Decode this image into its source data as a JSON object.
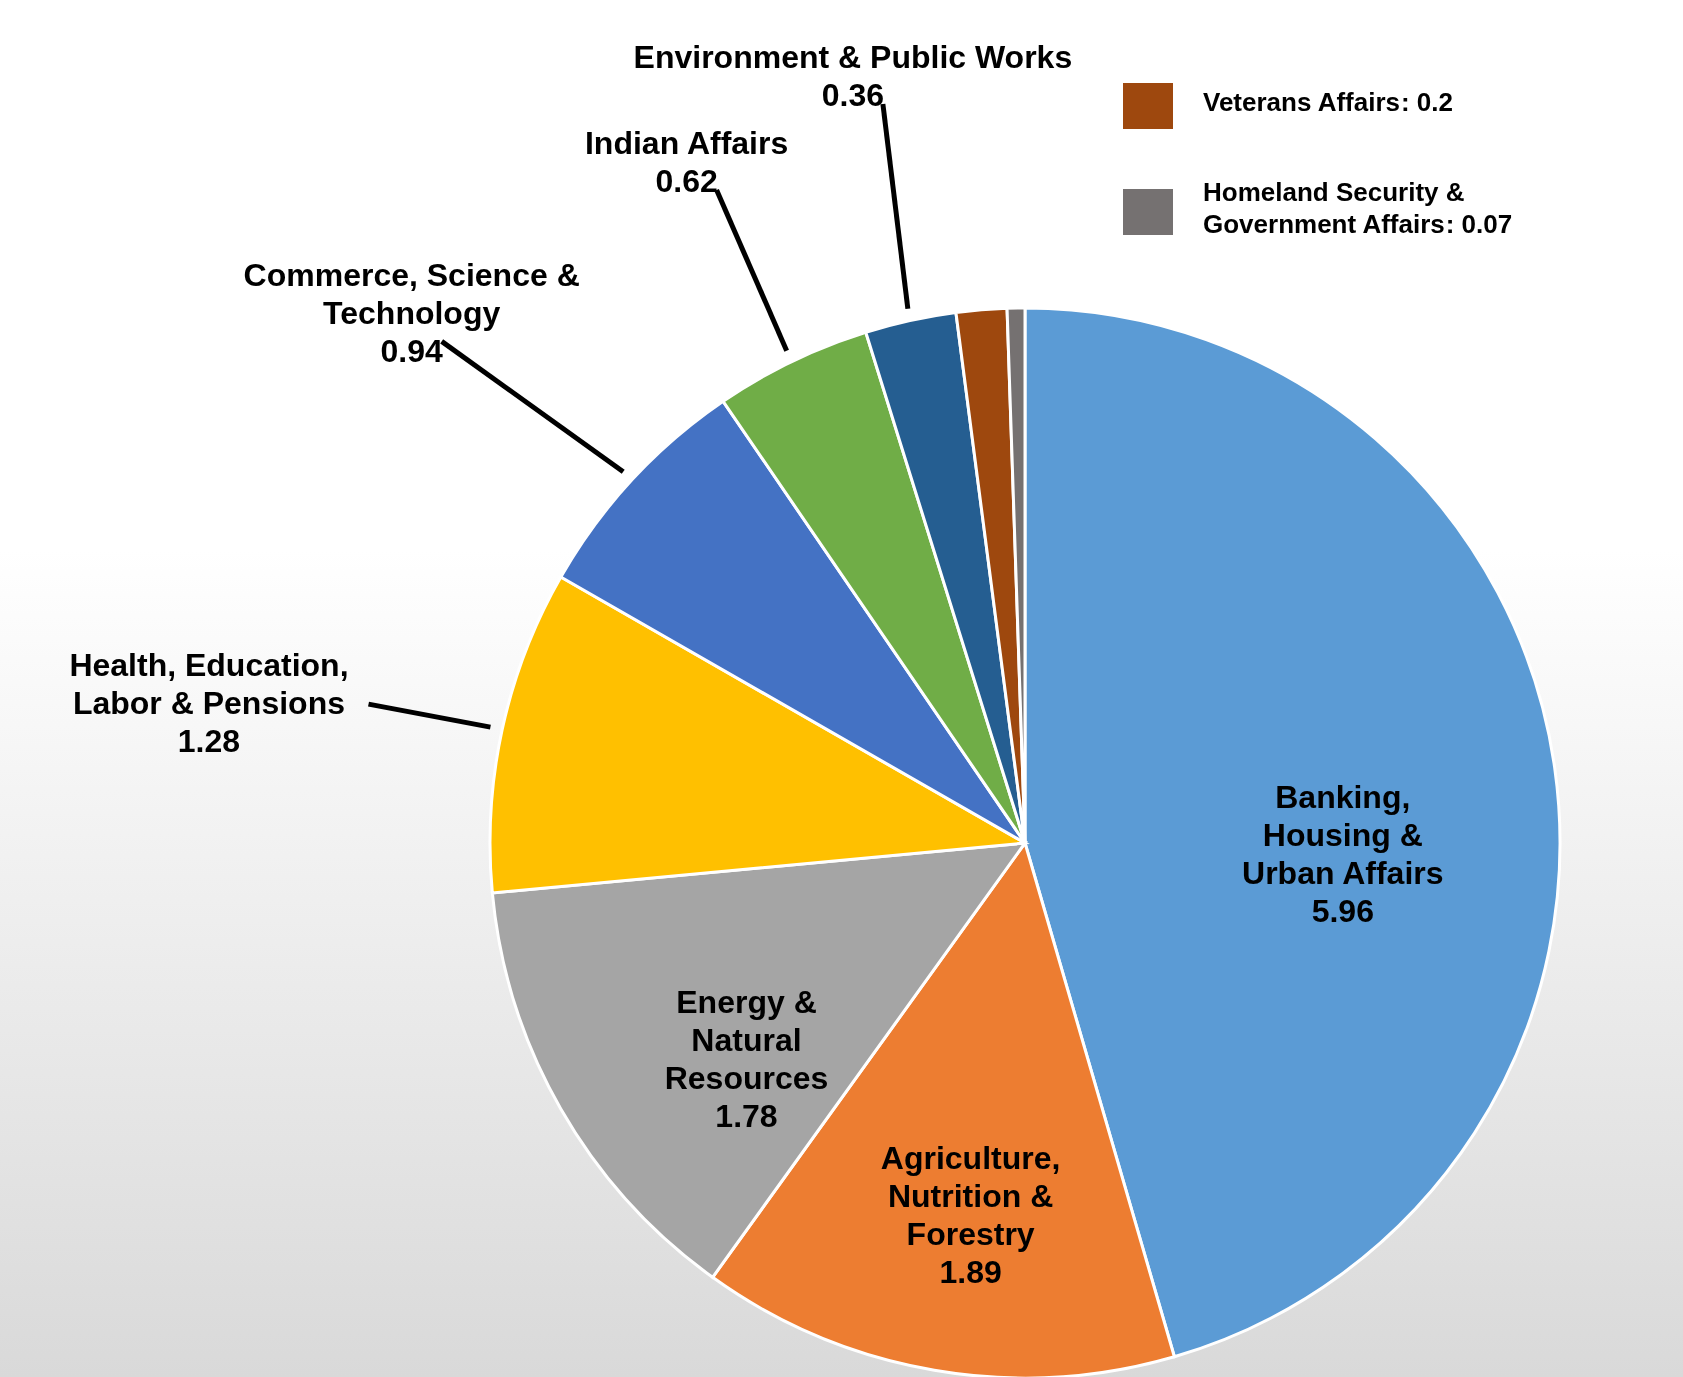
{
  "chart_data": {
    "type": "pie",
    "categories": [
      "Banking, Housing & Urban Affairs",
      "Agriculture, Nutrition & Forestry",
      "Energy & Natural Resources",
      "Health, Education, Labor & Pensions",
      "Commerce, Science & Technology",
      "Indian Affairs",
      "Environment & Public Works",
      "Veterans Affairs",
      "Homeland Security & Government Affairs"
    ],
    "values": [
      5.96,
      1.89,
      1.78,
      1.28,
      0.94,
      0.62,
      0.36,
      0.2,
      0.07
    ],
    "value_labels": [
      "5.96",
      "1.89",
      "1.78",
      "1.28",
      "0.94",
      "0.62",
      "0.36",
      ": 0.2",
      ": 0.07"
    ],
    "colors": [
      "#5b9bd5",
      "#ed7d31",
      "#a5a5a5",
      "#ffc000",
      "#4472c4",
      "#70ad47",
      "#255e91",
      "#9e480e",
      "#757171"
    ],
    "legend": "top right"
  }
}
